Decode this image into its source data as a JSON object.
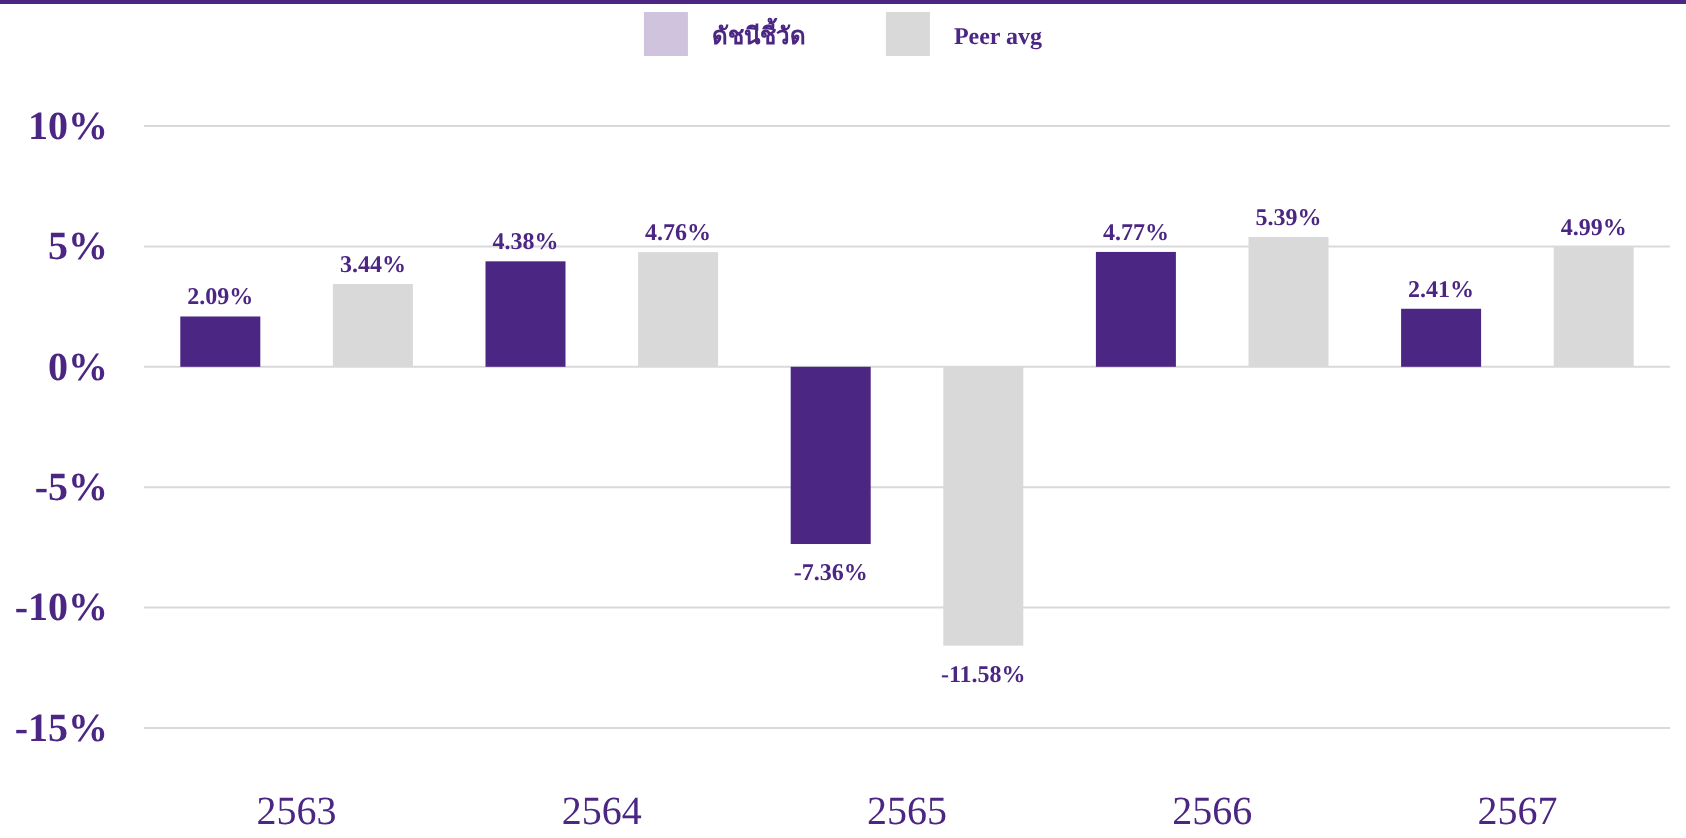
{
  "chart_data": {
    "type": "bar",
    "categories": [
      "2563",
      "2564",
      "2565",
      "2566",
      "2567"
    ],
    "series": [
      {
        "color": "#4b2683",
        "values": [
          2.09,
          4.38,
          -7.36,
          4.77,
          2.41
        ],
        "value_labels": [
          "2.09%",
          "4.38%",
          "-7.36%",
          "4.77%",
          "2.41%"
        ]
      },
      {
        "name": "ดัชนีชี้วัด",
        "color": "#cfc3dd",
        "values": [
          null,
          null,
          null,
          null,
          null
        ]
      },
      {
        "name": "Peer avg",
        "color": "#d9d9d9",
        "values": [
          3.44,
          4.76,
          -11.58,
          5.39,
          4.99
        ],
        "value_labels": [
          "3.44%",
          "4.76%",
          "-11.58%",
          "5.39%",
          "4.99%"
        ]
      }
    ],
    "ylim": [
      -15,
      10
    ],
    "yticks": [
      {
        "value": -15,
        "label": "-15%"
      },
      {
        "value": -10,
        "label": "-10%"
      },
      {
        "value": -5,
        "label": "-5%"
      },
      {
        "value": 0,
        "label": "0%"
      },
      {
        "value": 5,
        "label": "5%"
      },
      {
        "value": 10,
        "label": "10%"
      }
    ],
    "grid": "y",
    "legend": "top"
  }
}
